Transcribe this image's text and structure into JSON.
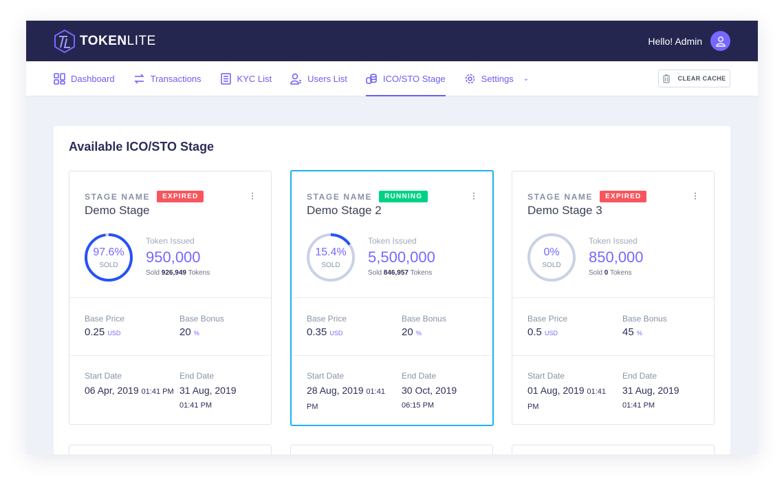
{
  "header": {
    "brand_bold": "TOKEN",
    "brand_light": "LITE",
    "greeting": "Hello! Admin"
  },
  "nav": {
    "items": [
      {
        "label": "Dashboard"
      },
      {
        "label": "Transactions"
      },
      {
        "label": "KYC List"
      },
      {
        "label": "Users List"
      },
      {
        "label": "ICO/STO Stage",
        "active": true
      },
      {
        "label": "Settings"
      }
    ],
    "clear_cache": "CLEAR CACHE"
  },
  "page": {
    "title": "Available ICO/STO Stage"
  },
  "labels": {
    "stage_name": "STAGE NAME",
    "token_issued": "Token Issued",
    "sold": "SOLD",
    "sold_prefix": "Sold",
    "tokens": "Tokens",
    "base_price": "Base Price",
    "base_bonus": "Base Bonus",
    "start_date": "Start Date",
    "end_date": "End Date",
    "usd": "USD",
    "percent": "%"
  },
  "colors": {
    "expired": "#f7565e",
    "running": "#00d285",
    "accent": "#7668fe",
    "ring": "#2752f6",
    "ring_track": "#c9d2e4",
    "selected_border": "#1cb2ef"
  },
  "stages": [
    {
      "name": "Demo Stage",
      "status": "EXPIRED",
      "percent": "97.6%",
      "percent_value": 97.6,
      "issued": "950,000",
      "sold": "926,949",
      "price": "0.25",
      "bonus": "20",
      "start": "06 Apr, 2019",
      "start_time": "01:41 PM",
      "end": "31 Aug, 2019",
      "end_time": "01:41 PM"
    },
    {
      "name": "Demo Stage 2",
      "status": "RUNNING",
      "percent": "15.4%",
      "percent_value": 15.4,
      "issued": "5,500,000",
      "sold": "846,957",
      "price": "0.35",
      "bonus": "20",
      "start": "28 Aug, 2019",
      "start_time": "01:41 PM",
      "end": "30 Oct, 2019",
      "end_time": "06:15 PM"
    },
    {
      "name": "Demo Stage 3",
      "status": "EXPIRED",
      "percent": "0%",
      "percent_value": 0,
      "issued": "850,000",
      "sold": "0",
      "price": "0.5",
      "bonus": "45",
      "start": "01 Aug, 2019",
      "start_time": "01:41 PM",
      "end": "31 Aug, 2019",
      "end_time": "01:41 PM"
    }
  ]
}
